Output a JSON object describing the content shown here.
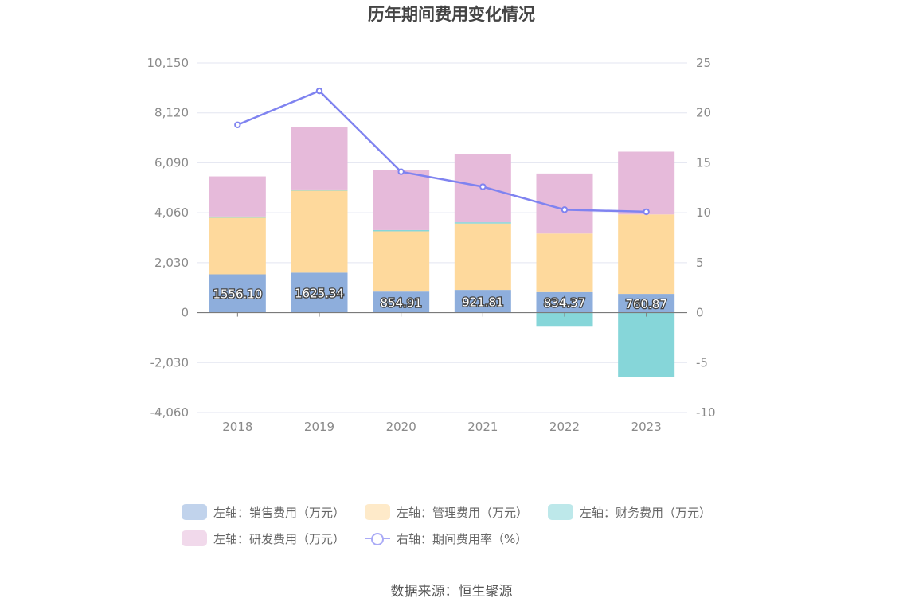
{
  "title": "历年期间费用变化情况",
  "source": "数据来源：恒生聚源",
  "chart_data": {
    "type": "bar",
    "stacked": true,
    "categories": [
      "2018",
      "2019",
      "2020",
      "2021",
      "2022",
      "2023"
    ],
    "left_axis": {
      "min": -4060,
      "max": 10150,
      "ticks": [
        10150,
        8120,
        6090,
        4060,
        2030,
        0,
        -2030,
        -4060
      ],
      "tick_labels": [
        "10,150",
        "8,120",
        "6,090",
        "4,060",
        "2,030",
        "0",
        "-2,030",
        "-4,060"
      ]
    },
    "right_axis": {
      "min": -10,
      "max": 25,
      "ticks": [
        25,
        20,
        15,
        10,
        5,
        0,
        -5,
        -10
      ],
      "tick_labels": [
        "25",
        "20",
        "15",
        "10",
        "5",
        "0",
        "-5",
        "-10"
      ]
    },
    "series": [
      {
        "name": "左轴：销售费用（万元）",
        "axis": "left",
        "type": "bar",
        "color": "#8eaedc",
        "values": [
          1556.1,
          1625.34,
          854.91,
          921.81,
          834.37,
          760.87
        ],
        "labels": [
          "1556.10",
          "1625.34",
          "854.91",
          "921.81",
          "834.37",
          "760.87"
        ]
      },
      {
        "name": "左轴：管理费用（万元）",
        "axis": "left",
        "type": "bar",
        "color": "#fed99c",
        "values": [
          2300,
          3330,
          2450,
          2700,
          2380,
          3230
        ]
      },
      {
        "name": "左轴：财务费用（万元）",
        "axis": "left",
        "type": "bar",
        "color": "#86d6d9",
        "values": [
          50,
          50,
          50,
          50,
          -540,
          -2610
        ]
      },
      {
        "name": "左轴：研发费用（万元）",
        "axis": "left",
        "type": "bar",
        "color": "#e6bada",
        "values": [
          1630,
          2540,
          2450,
          2780,
          2440,
          2550
        ]
      },
      {
        "name": "右轴：期间费用率（%）",
        "axis": "right",
        "type": "line",
        "color": "#7f83f0",
        "values": [
          18.8,
          22.2,
          14.1,
          12.6,
          10.3,
          10.1
        ]
      }
    ],
    "legend_position": "bottom",
    "grid": true
  }
}
